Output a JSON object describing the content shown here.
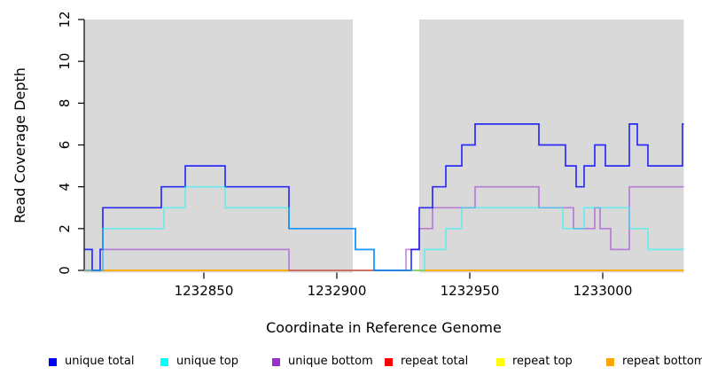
{
  "chart_data": {
    "type": "line",
    "subtype": "step-coverage",
    "title": "",
    "xlabel": "Coordinate in Reference Genome",
    "ylabel": "Read Coverage Depth",
    "xlim": [
      1232805,
      1233030.5
    ],
    "ylim": [
      0,
      12
    ],
    "x_ticks": [
      1232850,
      1232900,
      1232950,
      1233000
    ],
    "y_ticks": [
      0,
      2,
      4,
      6,
      8,
      10,
      12
    ],
    "grid": false,
    "legend_position": "bottom",
    "shade_color": "#d9d9d9",
    "shaded_regions": [
      [
        1232805,
        1232906
      ],
      [
        1232931,
        1233030.5
      ]
    ],
    "draw_order": [
      3,
      4,
      5,
      2,
      0,
      1
    ],
    "series": [
      {
        "name": "unique total",
        "color": "#0000FF",
        "alpha": 0.8,
        "steps": [
          [
            1232805,
            1
          ],
          [
            1232808,
            0
          ],
          [
            1232811,
            1
          ],
          [
            1232812,
            3
          ],
          [
            1232834,
            4
          ],
          [
            1232843,
            5
          ],
          [
            1232858,
            4
          ],
          [
            1232882,
            2
          ],
          [
            1232907,
            1
          ],
          [
            1232914,
            0
          ],
          [
            1232928,
            1
          ],
          [
            1232931,
            3
          ],
          [
            1232936,
            4
          ],
          [
            1232941,
            5
          ],
          [
            1232947,
            6
          ],
          [
            1232952,
            7
          ],
          [
            1232976,
            6
          ],
          [
            1232986,
            5
          ],
          [
            1232990,
            4
          ],
          [
            1232993,
            5
          ],
          [
            1232997,
            6
          ],
          [
            1233001,
            5
          ],
          [
            1233010,
            7
          ],
          [
            1233013,
            6
          ],
          [
            1233017,
            5
          ],
          [
            1233030,
            7
          ]
        ]
      },
      {
        "name": "unique top",
        "color": "#00FFFF",
        "alpha": 0.5,
        "steps": [
          [
            1232805,
            0
          ],
          [
            1232812,
            2
          ],
          [
            1232835,
            3
          ],
          [
            1232843,
            4
          ],
          [
            1232858,
            3
          ],
          [
            1232882,
            2
          ],
          [
            1232907,
            1
          ],
          [
            1232914,
            0
          ],
          [
            1232933,
            1
          ],
          [
            1232941,
            2
          ],
          [
            1232947,
            3
          ],
          [
            1232985,
            2
          ],
          [
            1232993,
            3
          ],
          [
            1233010,
            2
          ],
          [
            1233017,
            1
          ]
        ]
      },
      {
        "name": "unique bottom",
        "color": "#9932CC",
        "alpha": 0.55,
        "steps": [
          [
            1232805,
            0
          ],
          [
            1232812,
            1
          ],
          [
            1232882,
            0
          ],
          [
            1232926,
            1
          ],
          [
            1232931,
            2
          ],
          [
            1232936,
            3
          ],
          [
            1232952,
            4
          ],
          [
            1232976,
            3
          ],
          [
            1232989,
            2
          ],
          [
            1232997,
            3
          ],
          [
            1232999,
            2
          ],
          [
            1233003,
            1
          ],
          [
            1233010,
            4
          ]
        ]
      },
      {
        "name": "repeat total",
        "color": "#FF0000",
        "alpha": 0.9,
        "steps": [
          [
            1232805,
            0
          ]
        ]
      },
      {
        "name": "repeat top",
        "color": "#FFFF00",
        "alpha": 0.9,
        "steps": [
          [
            1232805,
            0
          ]
        ]
      },
      {
        "name": "repeat bottom",
        "color": "#FFA500",
        "alpha": 0.9,
        "steps": [
          [
            1232805,
            0
          ]
        ]
      }
    ]
  }
}
